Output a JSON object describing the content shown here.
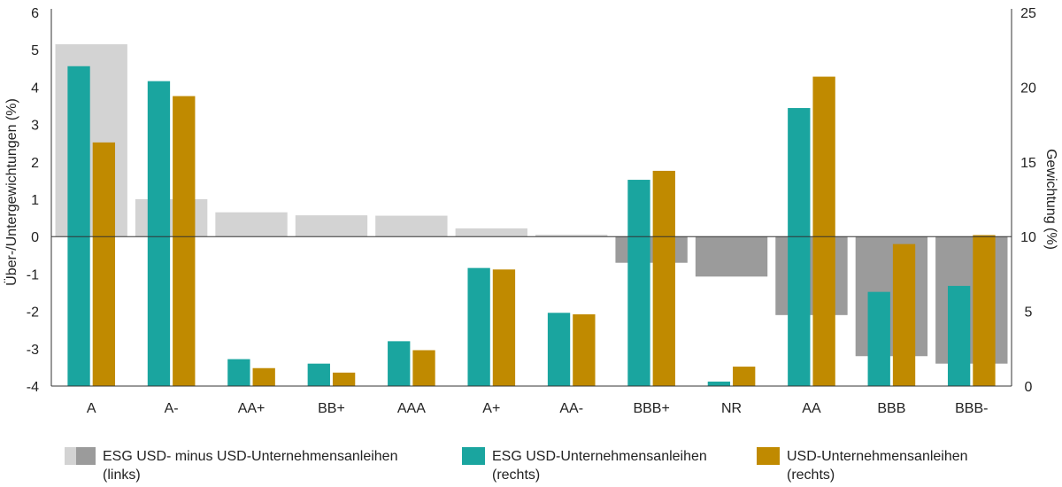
{
  "chart_data": {
    "type": "bar",
    "categories": [
      "A",
      "A-",
      "AA+",
      "BB+",
      "AAA",
      "A+",
      "AA-",
      "BBB+",
      "NR",
      "AA",
      "BBB",
      "BBB-"
    ],
    "left_axis": {
      "label": "Über-/Untergewichtungen (%)",
      "ylim": [
        -4,
        6
      ],
      "ticks": [
        "6",
        "5",
        "4",
        "3",
        "2",
        "1",
        "0",
        "-1",
        "-2",
        "-3",
        "-4"
      ]
    },
    "right_axis": {
      "label": "Gewichtung (%)",
      "ylim": [
        0,
        25
      ],
      "ticks": [
        "25",
        "20",
        "15",
        "10",
        "5",
        "0"
      ]
    },
    "series": [
      {
        "name": "ESG USD- minus USD-Unternehmensanleihen",
        "name_line2": "(links)",
        "axis": "left",
        "values": [
          5.15,
          1.0,
          0.65,
          0.57,
          0.56,
          0.22,
          0.05,
          -0.7,
          -1.07,
          -2.1,
          -3.2,
          -3.4
        ],
        "color_positive": "#d3d3d3",
        "color_negative": "#9b9b9b"
      },
      {
        "name": "ESG USD-Unternehmensanleihen",
        "name_line2": "(rechts)",
        "axis": "right",
        "values": [
          21.4,
          20.4,
          1.8,
          1.5,
          3.0,
          7.9,
          4.9,
          13.8,
          0.3,
          18.6,
          6.3,
          6.7
        ],
        "color": "#1aa59f"
      },
      {
        "name": "USD-Unternehmensanleihen",
        "name_line2": "(rechts)",
        "axis": "right",
        "values": [
          16.3,
          19.4,
          1.2,
          0.9,
          2.4,
          7.8,
          4.8,
          14.4,
          1.3,
          20.7,
          9.5,
          10.1
        ],
        "color": "#c08a00"
      }
    ],
    "grid": false
  }
}
